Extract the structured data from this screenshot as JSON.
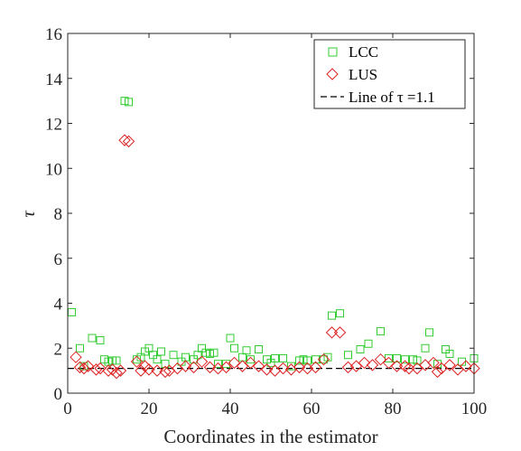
{
  "chart_data": {
    "type": "scatter",
    "xlabel": "Coordinates in the estimator",
    "ylabel": "τ",
    "xlim": [
      0,
      100
    ],
    "ylim": [
      0,
      16
    ],
    "xticks": [
      0,
      20,
      40,
      60,
      80,
      100
    ],
    "yticks": [
      0,
      2,
      4,
      6,
      8,
      10,
      12,
      14,
      16
    ],
    "legend_position": "top-right",
    "series": [
      {
        "name": "LCC",
        "marker": "square",
        "color": "#33cc33",
        "points": [
          [
            1,
            3.6
          ],
          [
            3,
            2.0
          ],
          [
            4,
            1.2
          ],
          [
            6,
            2.45
          ],
          [
            8,
            2.35
          ],
          [
            9,
            1.5
          ],
          [
            10,
            1.4
          ],
          [
            11,
            1.45
          ],
          [
            12,
            1.45
          ],
          [
            14,
            13.0
          ],
          [
            15,
            12.95
          ],
          [
            17,
            1.5
          ],
          [
            18,
            1.6
          ],
          [
            19,
            1.85
          ],
          [
            20,
            2.0
          ],
          [
            21,
            1.7
          ],
          [
            22,
            1.5
          ],
          [
            23,
            1.85
          ],
          [
            24,
            1.3
          ],
          [
            26,
            1.7
          ],
          [
            28,
            1.4
          ],
          [
            29,
            1.6
          ],
          [
            31,
            1.5
          ],
          [
            32,
            1.7
          ],
          [
            33,
            2.0
          ],
          [
            34,
            1.8
          ],
          [
            35,
            1.75
          ],
          [
            36,
            1.8
          ],
          [
            37,
            1.3
          ],
          [
            39,
            1.3
          ],
          [
            40,
            2.45
          ],
          [
            41,
            2.0
          ],
          [
            43,
            1.6
          ],
          [
            44,
            1.9
          ],
          [
            45,
            1.5
          ],
          [
            47,
            1.95
          ],
          [
            49,
            1.5
          ],
          [
            50,
            1.35
          ],
          [
            51,
            1.55
          ],
          [
            53,
            1.55
          ],
          [
            55,
            1.2
          ],
          [
            57,
            1.45
          ],
          [
            58,
            1.5
          ],
          [
            59,
            1.45
          ],
          [
            61,
            1.5
          ],
          [
            63,
            1.5
          ],
          [
            64,
            1.6
          ],
          [
            65,
            3.45
          ],
          [
            67,
            3.55
          ],
          [
            69,
            1.7
          ],
          [
            72,
            1.95
          ],
          [
            74,
            2.2
          ],
          [
            77,
            2.75
          ],
          [
            79,
            1.55
          ],
          [
            81,
            1.55
          ],
          [
            83,
            1.5
          ],
          [
            85,
            1.5
          ],
          [
            86,
            1.45
          ],
          [
            88,
            2.0
          ],
          [
            89,
            2.7
          ],
          [
            91,
            1.3
          ],
          [
            93,
            1.95
          ],
          [
            94,
            1.75
          ],
          [
            97,
            1.4
          ],
          [
            100,
            1.55
          ]
        ]
      },
      {
        "name": "LUS",
        "marker": "diamond",
        "color": "#dd2222",
        "points": [
          [
            2,
            1.6
          ],
          [
            3,
            1.15
          ],
          [
            4,
            1.1
          ],
          [
            5,
            1.2
          ],
          [
            7,
            1.05
          ],
          [
            8,
            1.1
          ],
          [
            10,
            1.0
          ],
          [
            11,
            1.05
          ],
          [
            12,
            0.9
          ],
          [
            13,
            1.0
          ],
          [
            14,
            11.25
          ],
          [
            15,
            11.2
          ],
          [
            17,
            1.4
          ],
          [
            18,
            1.0
          ],
          [
            19,
            1.2
          ],
          [
            20,
            1.05
          ],
          [
            22,
            1.0
          ],
          [
            24,
            0.95
          ],
          [
            25,
            1.0
          ],
          [
            27,
            1.1
          ],
          [
            29,
            1.2
          ],
          [
            31,
            1.15
          ],
          [
            33,
            1.4
          ],
          [
            35,
            1.15
          ],
          [
            37,
            1.1
          ],
          [
            39,
            1.15
          ],
          [
            41,
            1.35
          ],
          [
            43,
            1.2
          ],
          [
            45,
            1.35
          ],
          [
            47,
            1.2
          ],
          [
            49,
            1.05
          ],
          [
            51,
            1.0
          ],
          [
            53,
            1.1
          ],
          [
            55,
            1.05
          ],
          [
            57,
            1.15
          ],
          [
            59,
            1.1
          ],
          [
            61,
            1.15
          ],
          [
            63,
            1.5
          ],
          [
            65,
            2.7
          ],
          [
            67,
            2.7
          ],
          [
            69,
            1.15
          ],
          [
            71,
            1.2
          ],
          [
            73,
            1.35
          ],
          [
            75,
            1.25
          ],
          [
            77,
            1.5
          ],
          [
            79,
            1.35
          ],
          [
            81,
            1.2
          ],
          [
            83,
            1.2
          ],
          [
            84,
            1.1
          ],
          [
            86,
            1.1
          ],
          [
            88,
            1.25
          ],
          [
            90,
            1.35
          ],
          [
            91,
            0.95
          ],
          [
            92,
            1.1
          ],
          [
            94,
            1.25
          ],
          [
            96,
            1.05
          ],
          [
            98,
            1.2
          ],
          [
            100,
            1.1
          ]
        ]
      },
      {
        "name": "Line of τ =1.1",
        "style": "dashed",
        "color": "#000000",
        "x": [
          0,
          100
        ],
        "y": [
          1.1,
          1.1
        ]
      }
    ]
  }
}
